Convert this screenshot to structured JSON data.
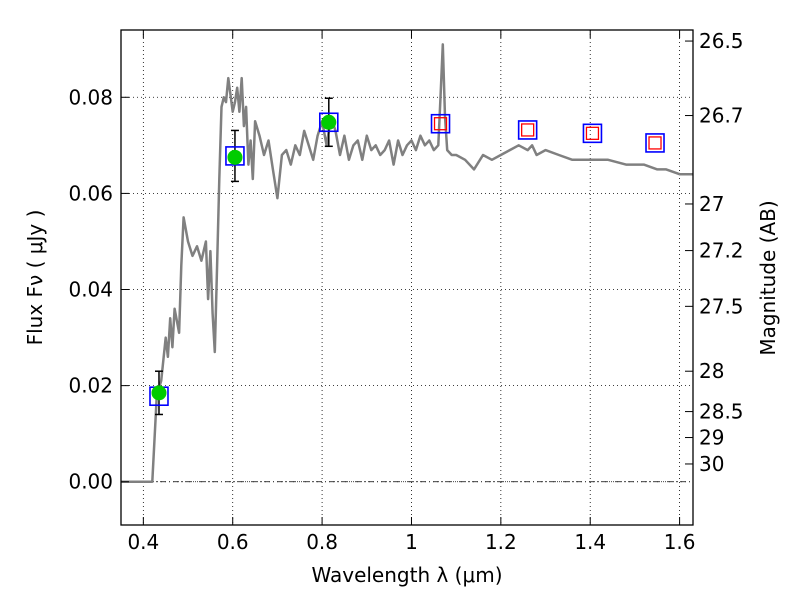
{
  "chart_data": {
    "type": "line",
    "xlabel": "Wavelength  λ (μm)",
    "ylabel": "Flux  Fν  ( μJy )",
    "ylabel_right": "Magnitude (AB)",
    "xlim": [
      0.35,
      1.63
    ],
    "ylim": [
      -0.009,
      0.094
    ],
    "grid": true,
    "x_ticks": [
      0.4,
      0.6,
      0.8,
      1.0,
      1.2,
      1.4,
      1.6
    ],
    "x_tick_labels": [
      "0.4",
      "0.6",
      "0.8",
      "1",
      "1.2",
      "1.4",
      "1.6"
    ],
    "y_ticks": [
      0.0,
      0.02,
      0.04,
      0.06,
      0.08
    ],
    "y_tick_labels": [
      "0.00",
      "0.02",
      "0.04",
      "0.06",
      "0.08"
    ],
    "right_ticks": [
      {
        "label": "26.5",
        "flux": 0.0917
      },
      {
        "label": "26.7",
        "flux": 0.0762
      },
      {
        "label": "27",
        "flux": 0.0578
      },
      {
        "label": "27.2",
        "flux": 0.0481
      },
      {
        "label": "27.5",
        "flux": 0.0365
      },
      {
        "label": "28",
        "flux": 0.023
      },
      {
        "label": "28.5",
        "flux": 0.0146
      },
      {
        "label": "29",
        "flux": 0.0092
      },
      {
        "label": "30",
        "flux": 0.0037
      }
    ],
    "series": [
      {
        "kind": "line",
        "color": "#808080",
        "x": [
          0.35,
          0.41,
          0.42,
          0.43,
          0.44,
          0.45,
          0.455,
          0.46,
          0.465,
          0.47,
          0.48,
          0.485,
          0.49,
          0.5,
          0.51,
          0.52,
          0.53,
          0.54,
          0.545,
          0.55,
          0.555,
          0.56,
          0.565,
          0.57,
          0.575,
          0.58,
          0.585,
          0.59,
          0.6,
          0.605,
          0.61,
          0.615,
          0.62,
          0.625,
          0.63,
          0.635,
          0.64,
          0.645,
          0.65,
          0.66,
          0.67,
          0.68,
          0.69,
          0.7,
          0.71,
          0.72,
          0.73,
          0.74,
          0.75,
          0.76,
          0.77,
          0.78,
          0.79,
          0.8,
          0.81,
          0.82,
          0.83,
          0.84,
          0.85,
          0.86,
          0.87,
          0.88,
          0.89,
          0.9,
          0.91,
          0.92,
          0.93,
          0.94,
          0.95,
          0.96,
          0.97,
          0.98,
          0.99,
          1.0,
          1.01,
          1.02,
          1.03,
          1.04,
          1.05,
          1.06,
          1.065,
          1.07,
          1.075,
          1.08,
          1.09,
          1.1,
          1.12,
          1.14,
          1.16,
          1.18,
          1.2,
          1.22,
          1.24,
          1.26,
          1.27,
          1.28,
          1.3,
          1.33,
          1.36,
          1.4,
          1.44,
          1.48,
          1.52,
          1.55,
          1.57,
          1.6,
          1.63
        ],
        "y": [
          0.0,
          0.0,
          0.0,
          0.018,
          0.021,
          0.03,
          0.026,
          0.034,
          0.028,
          0.036,
          0.031,
          0.045,
          0.055,
          0.05,
          0.047,
          0.049,
          0.046,
          0.05,
          0.038,
          0.048,
          0.035,
          0.027,
          0.045,
          0.063,
          0.078,
          0.08,
          0.079,
          0.084,
          0.077,
          0.079,
          0.082,
          0.077,
          0.084,
          0.074,
          0.078,
          0.066,
          0.071,
          0.063,
          0.075,
          0.072,
          0.068,
          0.071,
          0.065,
          0.059,
          0.068,
          0.069,
          0.066,
          0.07,
          0.068,
          0.073,
          0.07,
          0.067,
          0.072,
          0.075,
          0.07,
          0.076,
          0.073,
          0.068,
          0.072,
          0.067,
          0.07,
          0.071,
          0.067,
          0.072,
          0.069,
          0.07,
          0.068,
          0.069,
          0.071,
          0.066,
          0.071,
          0.068,
          0.07,
          0.071,
          0.069,
          0.072,
          0.07,
          0.071,
          0.069,
          0.07,
          0.08,
          0.091,
          0.076,
          0.069,
          0.068,
          0.068,
          0.067,
          0.065,
          0.068,
          0.067,
          0.068,
          0.069,
          0.07,
          0.069,
          0.07,
          0.068,
          0.069,
          0.068,
          0.067,
          0.067,
          0.067,
          0.066,
          0.066,
          0.065,
          0.065,
          0.064,
          0.064
        ]
      },
      {
        "kind": "errorbar",
        "color": "#000000",
        "x": [
          0.435,
          0.605,
          0.815
        ],
        "y": [
          0.0185,
          0.0678,
          0.0748
        ],
        "yerr": [
          0.0045,
          0.0053,
          0.005
        ]
      },
      {
        "kind": "square-marker",
        "color": "#0000ff",
        "x": [
          0.435,
          0.605,
          0.815,
          1.065,
          1.26,
          1.405,
          1.545
        ],
        "y": [
          0.0178,
          0.0678,
          0.0748,
          0.0745,
          0.0732,
          0.0725,
          0.0705
        ]
      },
      {
        "kind": "square-marker",
        "color": "#ff0000",
        "x": [
          1.065,
          1.26,
          1.405,
          1.545
        ],
        "y": [
          0.0745,
          0.0732,
          0.0725,
          0.0705
        ]
      },
      {
        "kind": "circle-marker",
        "color": "#00cc00",
        "x": [
          0.435,
          0.605,
          0.815
        ],
        "y": [
          0.0185,
          0.0675,
          0.0748
        ]
      }
    ],
    "hline": {
      "y": 0.0,
      "style": "dash-dot",
      "color": "#000000"
    }
  }
}
